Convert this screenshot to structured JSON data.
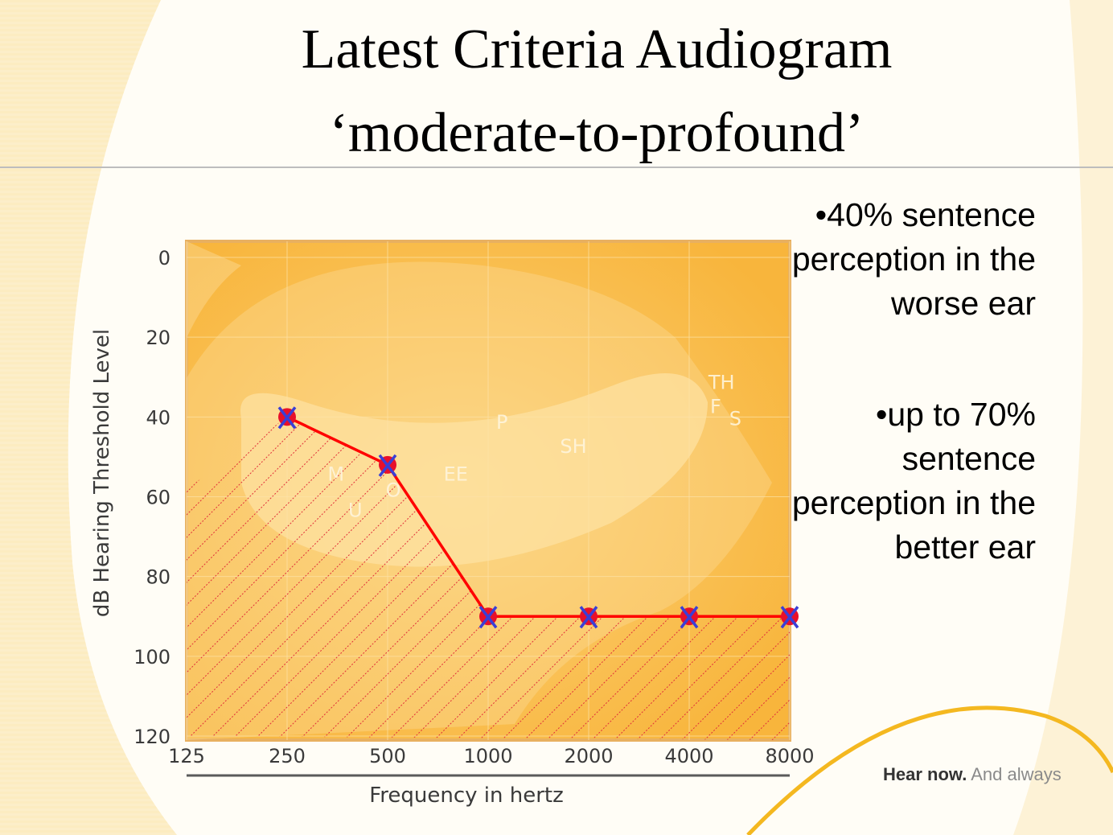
{
  "slide": {
    "title_line1": "Latest Criteria Audiogram",
    "title_line2": "‘moderate-to-profound’",
    "bullet1": "•40% sentence perception in the worse ear",
    "bullet2": "•up to 70% sentence perception in the better ear",
    "brand_bold": "Hear now.",
    "brand_light": " And always"
  },
  "colors": {
    "plot_bg": "#fbc45a",
    "line": "#ff0000",
    "marker_fill": "#e8102a",
    "marker_x": "#3a3fd6",
    "hatch": "#e0303a",
    "accent_arc": "#f4b820"
  },
  "chart_data": {
    "type": "line",
    "xlabel": "Frequency in hertz",
    "ylabel": "dB Hearing Threshold Level",
    "x_ticks": [
      "125",
      "250",
      "500",
      "1000",
      "2000",
      "4000",
      "8000"
    ],
    "y_ticks": [
      "0",
      "20",
      "40",
      "60",
      "80",
      "100",
      "120"
    ],
    "ylim": [
      0,
      120
    ],
    "y_inverted": true,
    "x_scale": "log2",
    "series": [
      {
        "x": [
          250,
          500,
          1000,
          2000,
          4000,
          8000
        ],
        "y": [
          40,
          52,
          90,
          90,
          90,
          90
        ],
        "marker": "red circle with blue X"
      }
    ],
    "shaded_region": "hatched area below the threshold line",
    "speech_labels": [
      {
        "text": "M",
        "x": 350,
        "y": 56
      },
      {
        "text": "U",
        "x": 400,
        "y": 65
      },
      {
        "text": "O",
        "x": 520,
        "y": 60
      },
      {
        "text": "EE",
        "x": 800,
        "y": 56
      },
      {
        "text": "P",
        "x": 1100,
        "y": 43
      },
      {
        "text": "SH",
        "x": 1800,
        "y": 49
      },
      {
        "text": "TH",
        "x": 5000,
        "y": 33
      },
      {
        "text": "F",
        "x": 4800,
        "y": 39
      },
      {
        "text": "S",
        "x": 5500,
        "y": 42
      }
    ]
  }
}
